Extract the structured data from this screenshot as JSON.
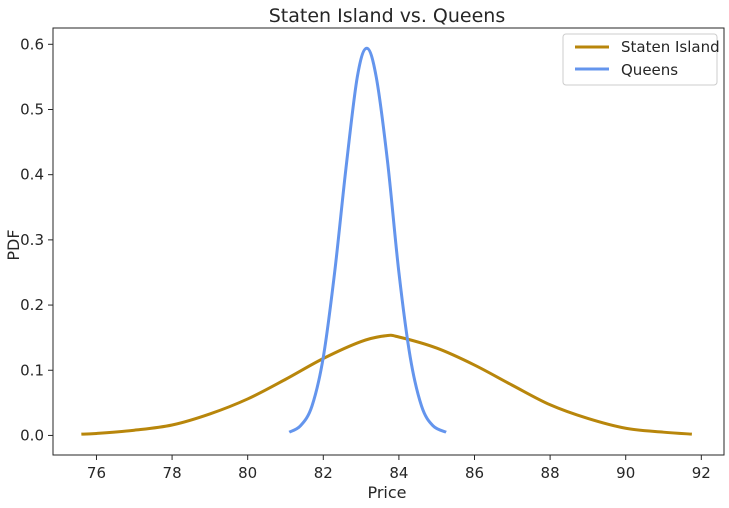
{
  "chart_data": {
    "type": "line",
    "title": "Staten Island vs. Queens",
    "xlabel": "Price",
    "ylabel": "PDF",
    "xlim": [
      74.85,
      92.6
    ],
    "ylim": [
      -0.03,
      0.625
    ],
    "xticks": [
      76,
      78,
      80,
      82,
      84,
      86,
      88,
      90,
      92
    ],
    "yticks": [
      0.0,
      0.1,
      0.2,
      0.3,
      0.4,
      0.5,
      0.6
    ],
    "grid": false,
    "legend_position": "top-right",
    "series": [
      {
        "name": "Staten Island",
        "color": "#b8860b",
        "x": [
          75.6,
          76,
          77,
          78,
          79,
          80,
          81,
          82,
          83,
          83.65,
          84,
          85,
          86,
          87,
          88,
          89,
          90,
          91,
          91.75
        ],
        "y": [
          0.002,
          0.003,
          0.008,
          0.016,
          0.033,
          0.056,
          0.086,
          0.118,
          0.144,
          0.153,
          0.151,
          0.134,
          0.108,
          0.077,
          0.047,
          0.026,
          0.011,
          0.005,
          0.002
        ]
      },
      {
        "name": "Queens",
        "color": "#6495ed",
        "x": [
          81.1,
          81.4,
          81.7,
          82.0,
          82.3,
          82.6,
          82.9,
          83.15,
          83.4,
          83.7,
          84.0,
          84.3,
          84.6,
          84.9,
          85.25
        ],
        "y": [
          0.005,
          0.015,
          0.045,
          0.12,
          0.25,
          0.41,
          0.55,
          0.594,
          0.55,
          0.42,
          0.25,
          0.12,
          0.045,
          0.015,
          0.005
        ]
      }
    ]
  }
}
